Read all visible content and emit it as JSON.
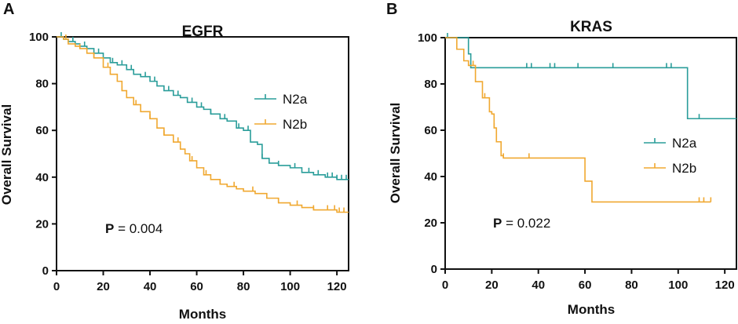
{
  "chart_data": [
    {
      "type": "line",
      "panel_label": "A",
      "title": "EGFR",
      "xlabel": "Months",
      "ylabel": "Overall Survival",
      "xlim": [
        0,
        125
      ],
      "ylim": [
        0,
        100
      ],
      "xticks": [
        "0",
        "20",
        "40",
        "60",
        "80",
        "100",
        "120"
      ],
      "yticks": [
        "0",
        "20",
        "40",
        "60",
        "80",
        "100"
      ],
      "p_prefix": "P",
      "p_value": "= 0.004",
      "series": [
        {
          "name": "N2a",
          "color": "#2a9d9a",
          "x": [
            0,
            3,
            5,
            8,
            10,
            13,
            16,
            20,
            23,
            26,
            30,
            33,
            36,
            40,
            43,
            46,
            50,
            53,
            56,
            60,
            63,
            66,
            70,
            73,
            77,
            80,
            83,
            86,
            88,
            91,
            95,
            100,
            105,
            110,
            115,
            120,
            125
          ],
          "y": [
            100,
            99,
            98,
            97,
            96,
            95,
            93,
            91,
            89,
            88,
            86,
            84,
            83,
            81,
            79,
            77,
            75,
            74,
            72,
            70,
            69,
            67,
            65,
            64,
            61,
            60,
            55,
            54,
            48,
            46,
            45,
            44,
            42,
            41,
            40,
            39,
            39
          ],
          "censor_x": [
            2,
            7,
            12,
            18,
            24,
            28,
            32,
            38,
            42,
            48,
            52,
            58,
            62,
            66,
            72,
            78,
            82,
            88,
            95,
            102,
            108,
            112,
            116,
            118,
            120,
            122,
            124
          ]
        },
        {
          "name": "N2b",
          "color": "#f0a830",
          "x": [
            0,
            3,
            5,
            8,
            10,
            13,
            16,
            20,
            23,
            26,
            28,
            30,
            33,
            36,
            40,
            43,
            46,
            50,
            53,
            55,
            57,
            60,
            63,
            66,
            70,
            73,
            77,
            80,
            85,
            90,
            95,
            100,
            105,
            110,
            115,
            120,
            125
          ],
          "y": [
            100,
            99,
            97,
            96,
            95,
            93,
            91,
            87,
            84,
            81,
            77,
            74,
            71,
            68,
            65,
            61,
            58,
            55,
            52,
            50,
            47,
            44,
            41,
            39,
            37,
            36,
            35,
            34,
            33,
            31,
            29,
            28,
            27,
            26,
            26,
            25,
            25
          ],
          "censor_x": [
            4,
            10,
            16,
            22,
            28,
            34,
            40,
            46,
            52,
            58,
            64,
            70,
            76,
            84,
            95,
            103,
            110,
            116,
            119,
            121,
            123
          ]
        }
      ]
    },
    {
      "type": "line",
      "panel_label": "B",
      "title": "KRAS",
      "xlabel": "Months",
      "ylabel": "Overall Survival",
      "xlim": [
        0,
        125
      ],
      "ylim": [
        0,
        100
      ],
      "xticks": [
        "0",
        "20",
        "40",
        "60",
        "80",
        "100",
        "120"
      ],
      "yticks": [
        "0",
        "20",
        "40",
        "60",
        "80",
        "100"
      ],
      "p_prefix": "P",
      "p_value": "= 0.022",
      "series": [
        {
          "name": "N2a",
          "color": "#2a9d9a",
          "x": [
            0,
            9,
            10,
            11,
            12,
            104,
            125
          ],
          "y": [
            100,
            100,
            93,
            87,
            87,
            65,
            65
          ],
          "censor_x": [
            1,
            11,
            35,
            37,
            45,
            47,
            57,
            72,
            95,
            97,
            109
          ]
        },
        {
          "name": "N2b",
          "color": "#f0a830",
          "x": [
            0,
            5,
            8,
            10,
            13,
            16,
            19,
            20,
            21,
            22,
            24,
            25,
            30,
            59,
            60,
            63,
            80,
            114
          ],
          "y": [
            100,
            95,
            90,
            88,
            81,
            74,
            68,
            67,
            61,
            55,
            49,
            48,
            48,
            48,
            38,
            29,
            29,
            29
          ],
          "censor_x": [
            12,
            17,
            21,
            25,
            36,
            109,
            111,
            114
          ]
        }
      ]
    }
  ]
}
